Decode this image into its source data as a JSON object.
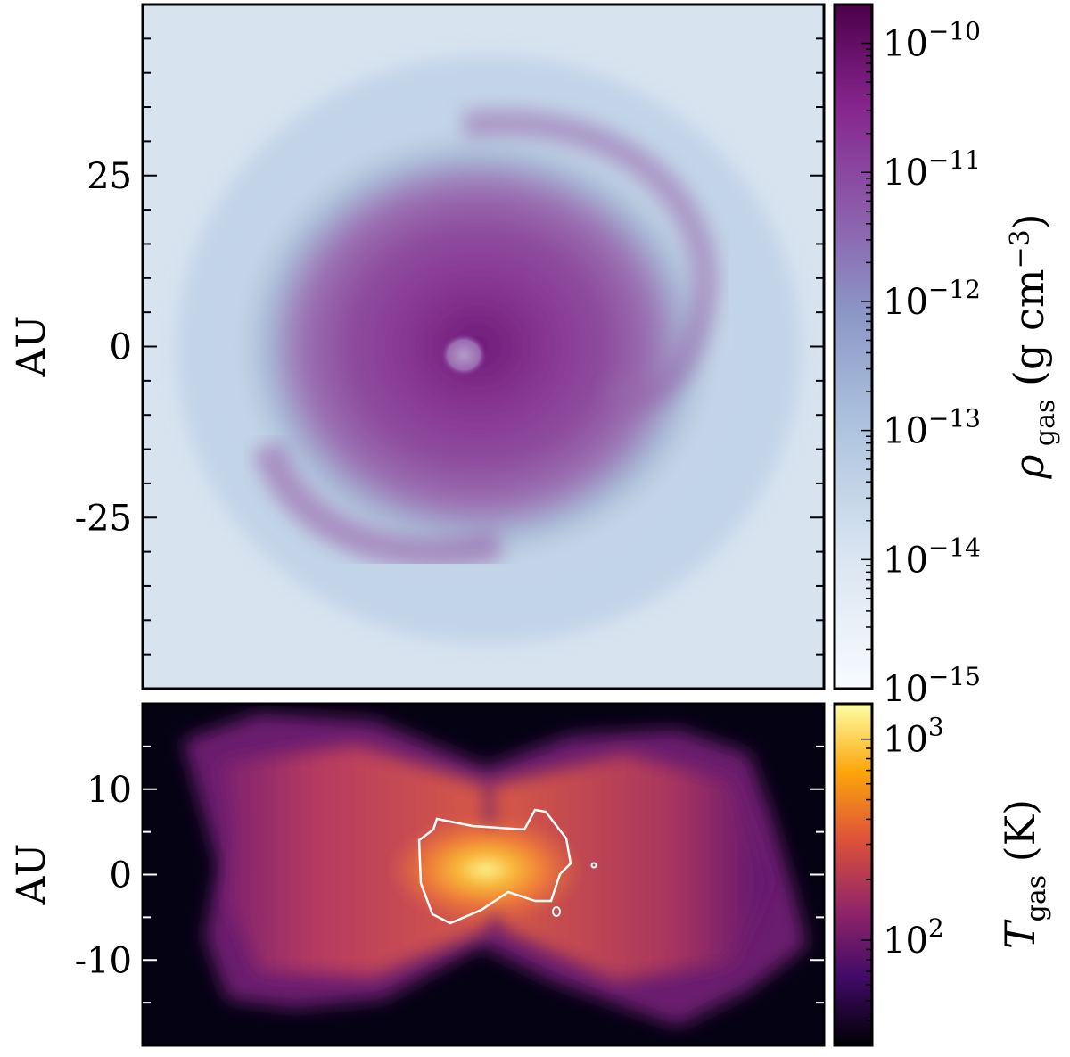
{
  "chart_data": [
    {
      "type": "heatmap",
      "panel": "top",
      "ylabel": "AU",
      "ytick_values": [
        25,
        0,
        -25
      ],
      "ytick_labels": [
        "25",
        "0",
        "-25"
      ],
      "ylim": [
        -50,
        50
      ],
      "xlim": [
        -50,
        50
      ],
      "colormap": "BuPu",
      "colorbar": {
        "label": "ρ gas (g cm−3)",
        "scale": "log",
        "range": [
          1e-15,
          2e-10
        ],
        "tick_values": [
          1e-10,
          1e-11,
          1e-12,
          1e-13,
          1e-14,
          1e-15
        ],
        "tick_labels": [
          "10−10",
          "10−11",
          "10−12",
          "10−13",
          "10−14",
          "10−15"
        ],
        "colors": [
          "#f7fbff",
          "#bfd3e6",
          "#8c96c6",
          "#8c6bb1",
          "#88419d",
          "#6e016b",
          "#4d004b"
        ]
      }
    },
    {
      "type": "heatmap",
      "panel": "bottom",
      "ylabel": "AU",
      "ytick_values": [
        10,
        0,
        -10
      ],
      "ytick_labels": [
        "10",
        "0",
        "-10"
      ],
      "ylim": [
        -20,
        20
      ],
      "colormap": "inferno",
      "contour_color": "#ffffff",
      "colorbar": {
        "label": "T gas (K)",
        "scale": "log",
        "range": [
          30,
          1500
        ],
        "tick_values": [
          1000,
          100
        ],
        "tick_labels": [
          "10³",
          "10²"
        ],
        "colors": [
          "#000004",
          "#420a68",
          "#932667",
          "#dd513a",
          "#fca50a",
          "#fcffa4"
        ]
      }
    }
  ]
}
